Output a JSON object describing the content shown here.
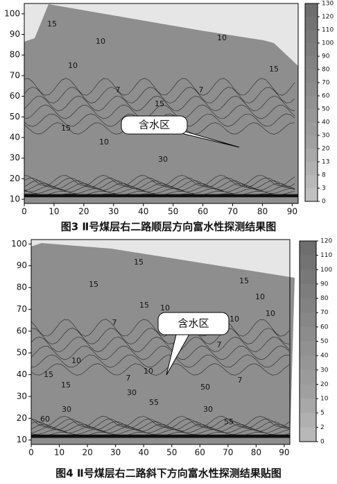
{
  "chart_data": [
    {
      "type": "contour",
      "caption": "图3 Ⅱ号煤层右二路顺层方向富水性探测结果图",
      "annotation": "含水区",
      "xlim": [
        0,
        92
      ],
      "ylim": [
        8,
        105
      ],
      "xticks": [
        0,
        10,
        20,
        30,
        40,
        50,
        60,
        70,
        80,
        90
      ],
      "yticks": [
        10,
        20,
        30,
        40,
        50,
        60,
        70,
        80,
        90,
        100
      ],
      "colorbar_ticks": [
        130,
        120,
        110,
        100,
        90,
        80,
        70,
        60,
        50,
        40,
        30,
        20,
        13,
        8,
        3,
        0
      ],
      "contour_labels": [
        "15",
        "10",
        "10",
        "7",
        "15",
        "10",
        "15",
        "10",
        "7",
        "15",
        "30"
      ]
    },
    {
      "type": "contour",
      "caption": "图4 Ⅱ号煤层右二路斜下方向富水性探测结果贴图",
      "annotation": "含水区",
      "xlim": [
        0,
        92
      ],
      "ylim": [
        8,
        102
      ],
      "xticks": [
        0,
        10,
        20,
        30,
        40,
        50,
        60,
        70,
        80,
        90
      ],
      "yticks": [
        10,
        20,
        30,
        40,
        50,
        60,
        70,
        80,
        90,
        100
      ],
      "colorbar_ticks": [
        120,
        110,
        100,
        90,
        80,
        70,
        60,
        50,
        40,
        30,
        20,
        10,
        5,
        2,
        0
      ],
      "contour_labels": [
        "15",
        "15",
        "15",
        "15",
        "10",
        "10",
        "7",
        "10",
        "10",
        "7",
        "10",
        "10",
        "15",
        "7",
        "15",
        "30",
        "55",
        "60",
        "30",
        "30",
        "50",
        "7",
        "55"
      ]
    }
  ]
}
